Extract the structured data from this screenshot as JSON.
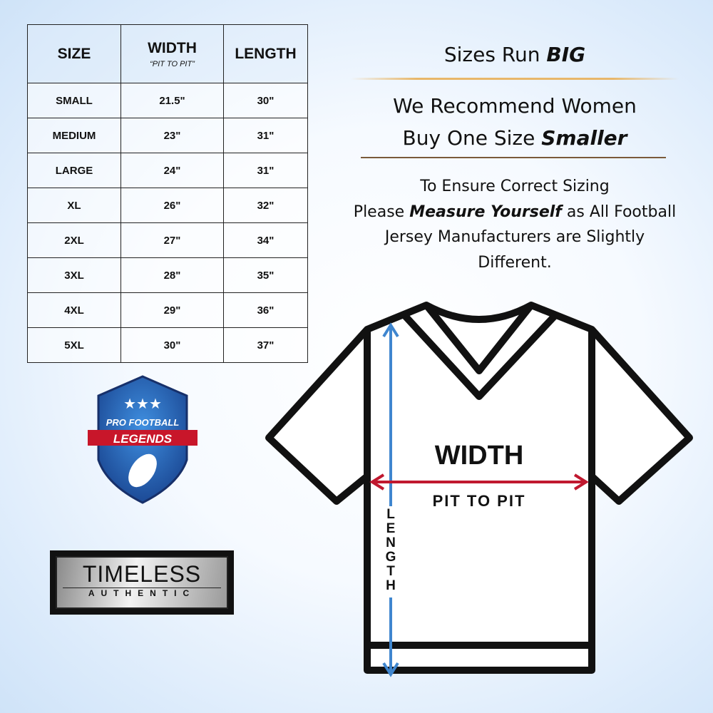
{
  "table": {
    "headers": {
      "size": "SIZE",
      "width": "WIDTH",
      "width_sub": "“PIT TO PIT”",
      "length": "LENGTH"
    },
    "rows": [
      {
        "size": "SMALL",
        "width": "21.5\"",
        "length": "30\""
      },
      {
        "size": "MEDIUM",
        "width": "23\"",
        "length": "31\""
      },
      {
        "size": "LARGE",
        "width": "24\"",
        "length": "31\""
      },
      {
        "size": "XL",
        "width": "26\"",
        "length": "32\""
      },
      {
        "size": "2XL",
        "width": "27\"",
        "length": "34\""
      },
      {
        "size": "3XL",
        "width": "28\"",
        "length": "35\""
      },
      {
        "size": "4XL",
        "width": "29\"",
        "length": "36\""
      },
      {
        "size": "5XL",
        "width": "30\"",
        "length": "37\""
      }
    ]
  },
  "notes": {
    "headline_pre": "Sizes Run ",
    "headline_em": "BIG",
    "recommend_line1": "We Recommend Women",
    "recommend_line2_pre": "Buy One Size ",
    "recommend_line2_em": "Smaller",
    "para_line1": "To Ensure Correct Sizing",
    "para_line2_pre": "Please ",
    "para_line2_em": "Measure Yourself",
    "para_line2_post": " as All Football",
    "para_line3": "Jersey Manufacturers are Slightly",
    "para_line4": "Different."
  },
  "diagram": {
    "width_label": "WIDTH",
    "width_sub": "PIT TO PIT",
    "length_label": "LENGTH",
    "width_arrow_color": "#c0182f",
    "length_arrow_color": "#3f86cf"
  },
  "logos": {
    "pfl_line1": "PRO FOOTBALL",
    "pfl_line2": "LEGENDS",
    "ta_line1": "TIMELESS",
    "ta_line2": "AUTHENTIC"
  },
  "colors": {
    "gold_divider": "#e8b76a",
    "brown_divider": "#7a5a3a",
    "shield_blue": "#1f4f9c",
    "banner_red": "#c8162a"
  }
}
